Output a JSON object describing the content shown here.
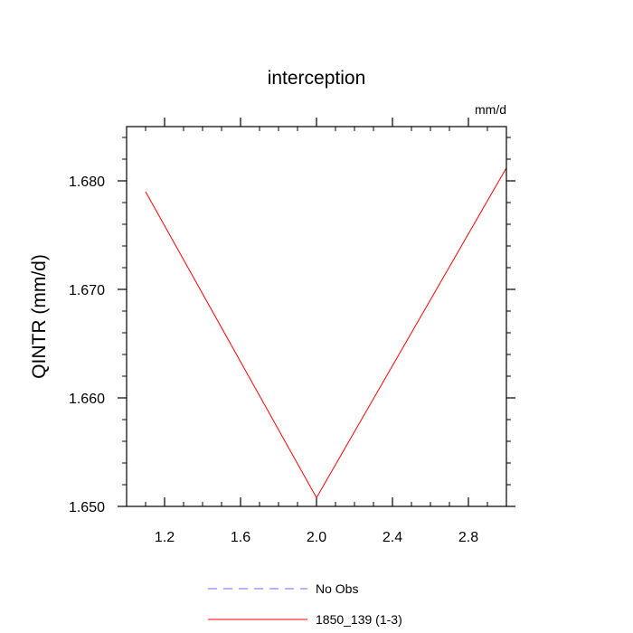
{
  "chart_data": {
    "type": "line",
    "title": "interception",
    "units_label": "mm/d",
    "ylabel": "QINTR  (mm/d)",
    "xlabel": "",
    "xlim": [
      1.0,
      3.0
    ],
    "ylim": [
      1.65,
      1.685
    ],
    "x_ticks": [
      {
        "value": 1.2,
        "label": "1.2"
      },
      {
        "value": 1.6,
        "label": "1.6"
      },
      {
        "value": 2.0,
        "label": "2.0"
      },
      {
        "value": 2.4,
        "label": "2.4"
      },
      {
        "value": 2.8,
        "label": "2.8"
      }
    ],
    "y_ticks": [
      {
        "value": 1.65,
        "label": "1.650"
      },
      {
        "value": 1.66,
        "label": "1.660"
      },
      {
        "value": 1.67,
        "label": "1.670"
      },
      {
        "value": 1.68,
        "label": "1.680"
      }
    ],
    "series": [
      {
        "name": "No Obs",
        "color": "#6a6aff",
        "dash": "dashed",
        "x": [],
        "y": []
      },
      {
        "name": "1850_139 (1-3)",
        "color": "#ff0000",
        "dash": "solid",
        "x": [
          1.1,
          2.0,
          3.0
        ],
        "y": [
          1.679,
          1.6508,
          1.6812
        ]
      }
    ],
    "grid": false,
    "legend_position": "bottom-center"
  }
}
